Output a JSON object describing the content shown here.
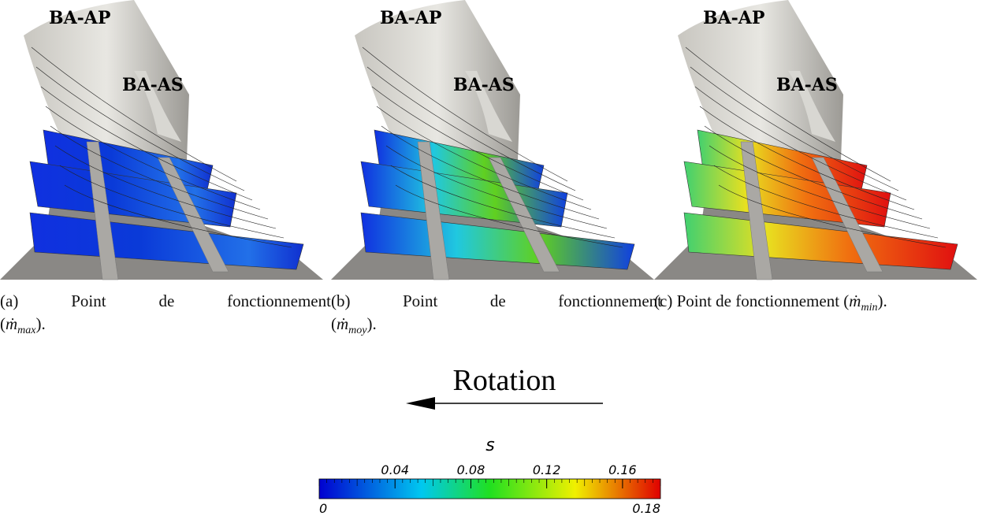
{
  "panels": [
    {
      "labels": [
        "BA-AP",
        "BA-AS"
      ],
      "caption": {
        "label": "(a)",
        "words": [
          "Point",
          "de",
          "fonctionnement"
        ],
        "open": "(",
        "quantity": "ṁ",
        "subscript": "max",
        "close": ")."
      }
    },
    {
      "labels": [
        "BA-AP",
        "BA-AS"
      ],
      "caption": {
        "label": "(b)",
        "words": [
          "Point",
          "de",
          "fonctionnement"
        ],
        "open": "(",
        "quantity": "ṁ",
        "subscript": "moy",
        "close": ")."
      }
    },
    {
      "labels": [
        "BA-AP",
        "BA-AS"
      ],
      "caption": {
        "label": "(c)",
        "words": [
          "Point",
          "de",
          "fonctionnement"
        ],
        "open": "(",
        "quantity": "ṁ",
        "subscript": "min",
        "close": ")."
      }
    }
  ],
  "rotation": "Rotation",
  "colorbar": {
    "title": "s",
    "min": 0,
    "max": 0.18,
    "ticks": [
      0.04,
      0.08,
      0.12,
      0.16
    ]
  }
}
